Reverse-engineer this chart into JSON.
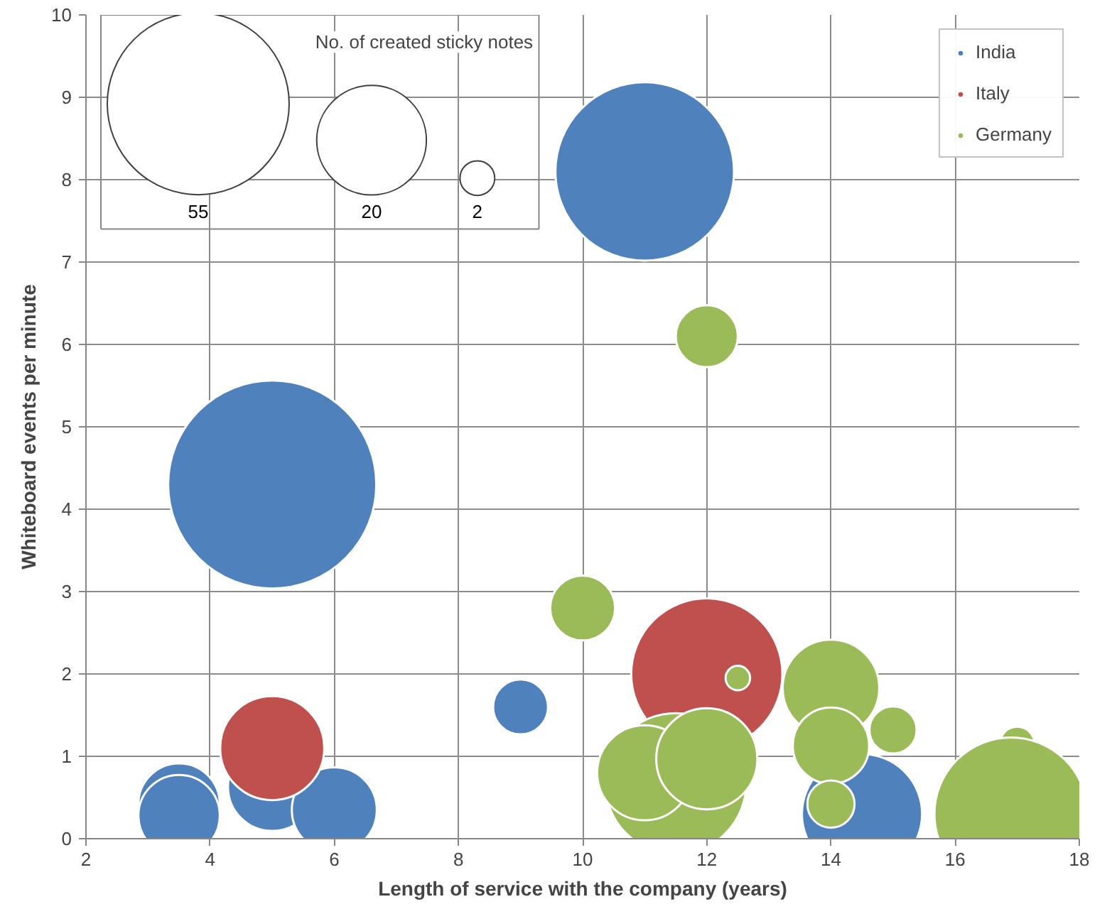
{
  "chart_data": {
    "type": "bubble",
    "xlabel": "Length of service with the company (years)",
    "ylabel": "Whiteboard events per minute",
    "annotations": [
      "No. of created sticky notes"
    ],
    "size_legend": [
      55,
      20,
      2
    ],
    "series": [
      {
        "name": "India",
        "color": "#4f81bd",
        "x": [
          11,
          5,
          9,
          3.5,
          3.5,
          5,
          6,
          14.5
        ],
        "values": [
          8.1,
          4.3,
          1.6,
          0.42,
          0.28,
          0.63,
          0.35,
          0.3
        ],
        "sizes": [
          53,
          72,
          5,
          11,
          11,
          13,
          12,
          24
        ]
      },
      {
        "name": "Italy",
        "color": "#c0504d",
        "x": [
          5,
          12
        ],
        "values": [
          1.1,
          2.0
        ],
        "sizes": [
          18,
          38
        ]
      },
      {
        "name": "Germany",
        "color": "#9bbb59",
        "x": [
          12,
          10,
          12.5,
          14,
          14,
          14,
          15,
          17,
          16.9,
          11.5,
          11,
          12
        ],
        "values": [
          6.1,
          2.8,
          1.95,
          1.83,
          1.13,
          0.42,
          1.32,
          1.15,
          0.3,
          0.67,
          0.8,
          0.97
        ],
        "sizes": [
          6.4,
          7,
          1,
          15.5,
          9.7,
          3.7,
          3.7,
          2,
          39,
          33,
          15,
          17
        ]
      }
    ],
    "xlim": [
      2,
      18
    ],
    "ylim": [
      0,
      10
    ],
    "xticks": [
      2,
      4,
      6,
      8,
      10,
      12,
      14,
      16,
      18
    ],
    "yticks": [
      0,
      1,
      2,
      3,
      4,
      5,
      6,
      7,
      8,
      9,
      10
    ],
    "grid": true,
    "legend": "top right"
  }
}
